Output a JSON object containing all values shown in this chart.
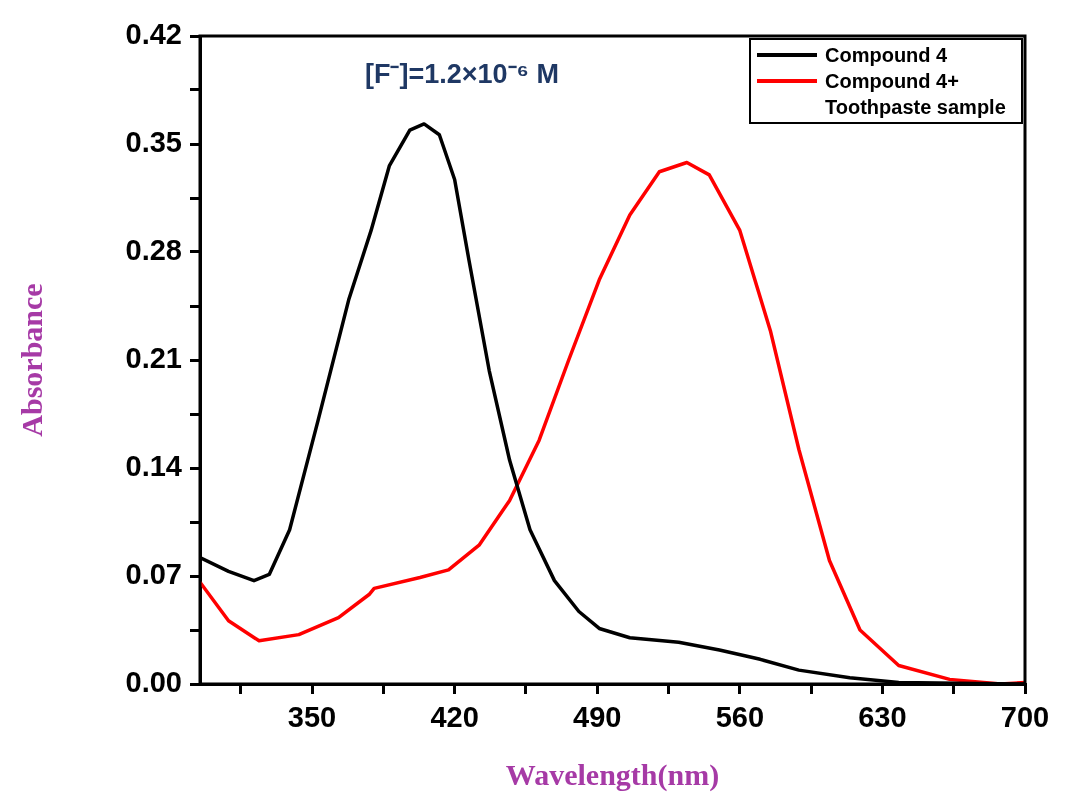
{
  "chart_data": {
    "type": "line",
    "xlabel": "Wavelength(nm)",
    "ylabel": "Absorbance",
    "annotations": [
      "[F⁻]=1.2×10⁻⁶ M"
    ],
    "xlim": [
      295,
      700
    ],
    "ylim": [
      0,
      0.42
    ],
    "xticks": [
      {
        "value": 315,
        "label": null
      },
      350,
      {
        "value": 385,
        "label": null
      },
      420,
      {
        "value": 455,
        "label": null
      },
      490,
      {
        "value": 525,
        "label": null
      },
      560,
      {
        "value": 595,
        "label": null
      },
      630,
      {
        "value": 665,
        "label": null
      },
      700
    ],
    "yticks": [
      {
        "value": 0,
        "label": "0.00"
      },
      {
        "value": 0.035,
        "label": null
      },
      0.07,
      {
        "value": 0.105,
        "label": null
      },
      0.14,
      {
        "value": 0.175,
        "label": null
      },
      0.21,
      {
        "value": 0.245,
        "label": null
      },
      0.28,
      {
        "value": 0.315,
        "label": null
      },
      0.35,
      {
        "value": 0.385,
        "label": null
      },
      0.42
    ],
    "grid": false,
    "legend": "top right",
    "marker": "none",
    "series": [
      {
        "name": "Compound 4",
        "color": "#000000",
        "x": [
          295,
          309,
          321.5,
          329,
          339,
          353,
          368,
          379,
          388,
          398,
          405,
          412.5,
          420,
          427,
          437,
          447,
          457,
          469,
          481,
          491,
          506,
          530,
          550,
          570,
          589,
          614,
          638,
          700
        ],
        "values": [
          0.082,
          0.073,
          0.067,
          0.071,
          0.1,
          0.171,
          0.249,
          0.294,
          0.336,
          0.359,
          0.363,
          0.356,
          0.327,
          0.275,
          0.203,
          0.145,
          0.1,
          0.067,
          0.047,
          0.036,
          0.03,
          0.027,
          0.022,
          0.016,
          0.009,
          0.004,
          0.001,
          0
        ]
      },
      {
        "name": "Compound 4+ Toothpaste sample",
        "color": "#ff0000",
        "x": [
          295,
          309,
          324,
          343.5,
          363,
          378,
          380.5,
          403,
          417,
          432,
          447,
          461.5,
          476,
          491,
          506,
          520.5,
          534,
          545,
          560,
          575,
          589,
          604,
          619,
          638,
          663,
          688,
          700
        ],
        "values": [
          0.066,
          0.041,
          0.028,
          0.032,
          0.043,
          0.058,
          0.062,
          0.069,
          0.074,
          0.09,
          0.119,
          0.158,
          0.21,
          0.262,
          0.304,
          0.332,
          0.338,
          0.33,
          0.294,
          0.229,
          0.152,
          0.08,
          0.035,
          0.012,
          0.003,
          0,
          0.001
        ]
      }
    ]
  }
}
